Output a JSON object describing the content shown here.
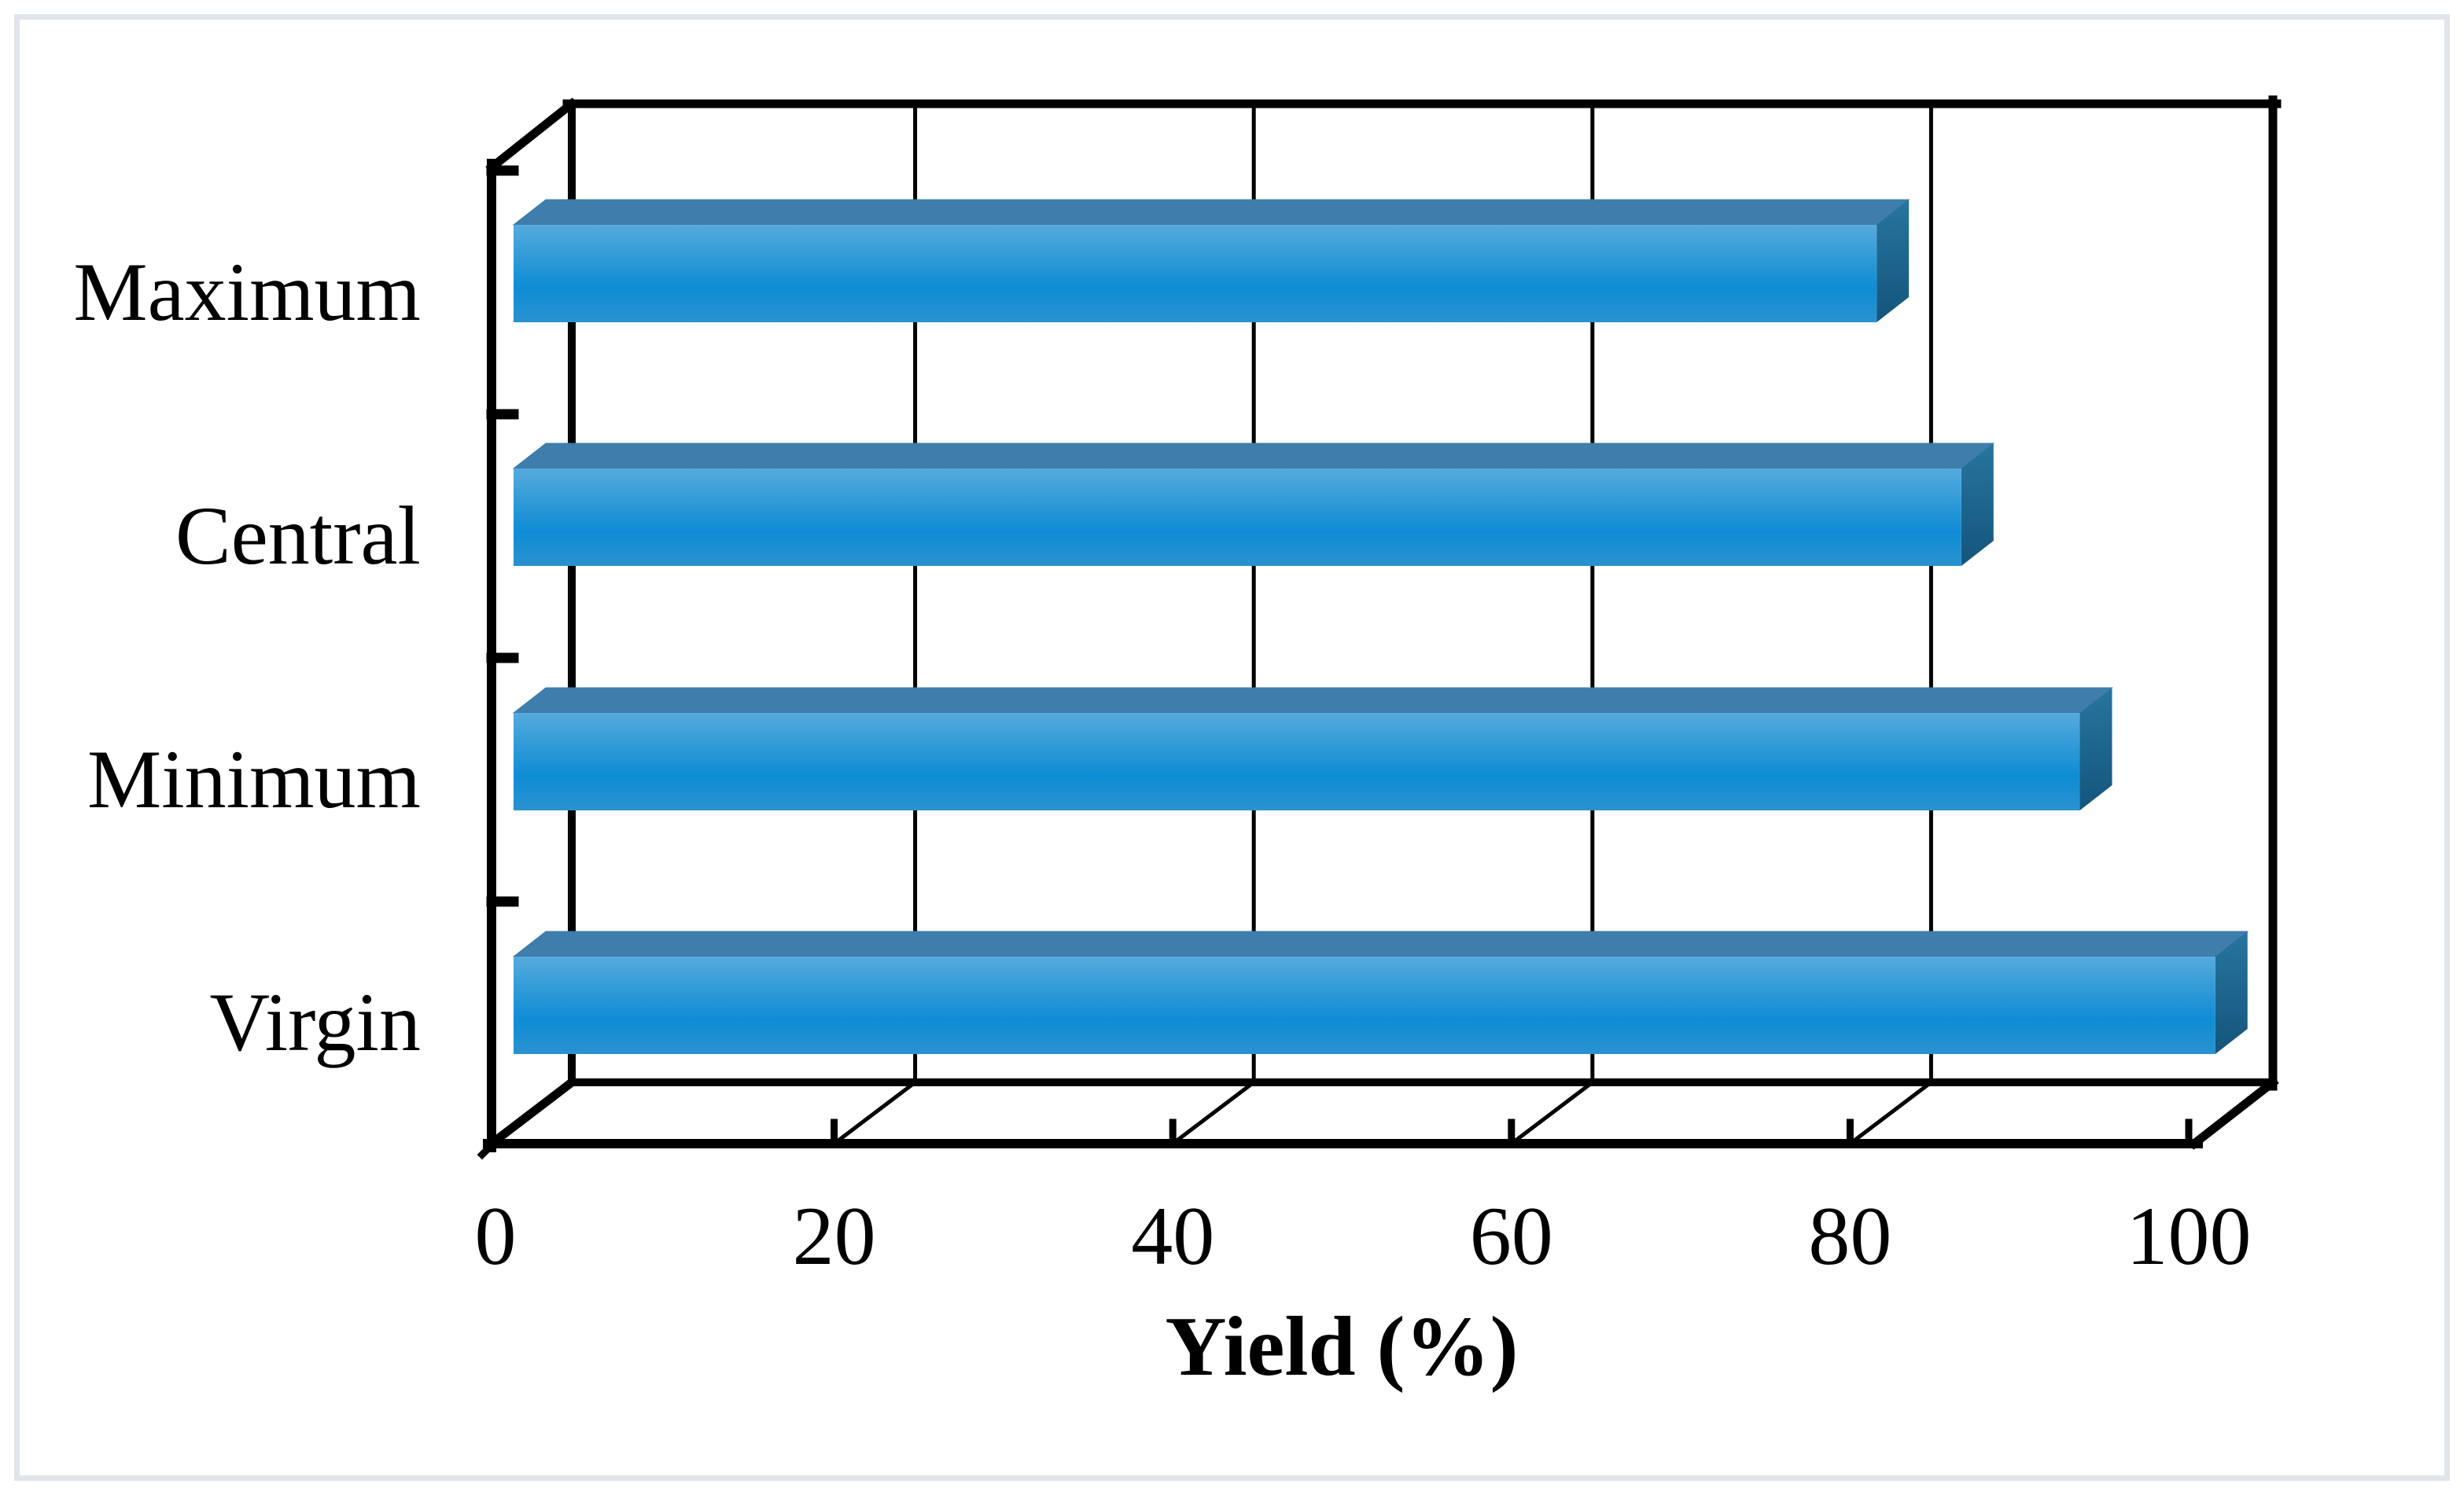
{
  "chart_data": {
    "type": "bar",
    "orientation": "horizontal",
    "style": "3d",
    "title": "",
    "xlabel": "Yield (%)",
    "ylabel": "",
    "categories": [
      "Maximum",
      "Central",
      "Minimum",
      "Virgin"
    ],
    "values": [
      80.5,
      85.5,
      92.5,
      100.5
    ],
    "x_ticks": [
      0,
      20,
      40,
      60,
      80,
      100
    ],
    "xlim": [
      0,
      100
    ],
    "grid": true,
    "legend": null,
    "category_order": "top-to-bottom"
  },
  "colors": {
    "bar_face_top": "#56aadd",
    "bar_face_upper": "#2f9ad7",
    "bar_face_mid": "#0f8cd5",
    "bar_face_bottom": "#2a92cf",
    "bar_bevel_top": "#3e7dac",
    "bar_side_top": "#27759f",
    "bar_side_bottom": "#14557c",
    "axis_line": "#000000",
    "grid_line": "#000000",
    "text": "#000000",
    "figure_border": "#dfe5ea",
    "background": "#ffffff"
  }
}
